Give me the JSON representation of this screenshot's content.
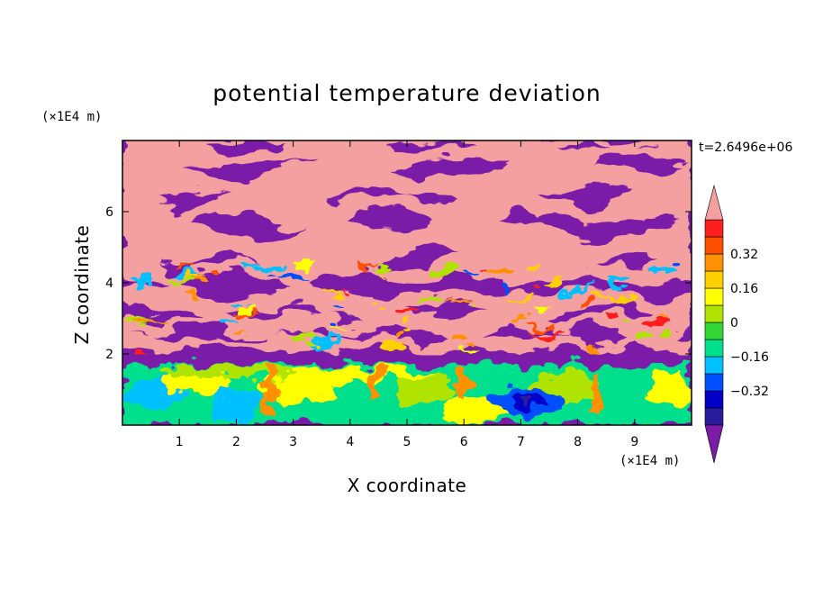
{
  "chart_data": {
    "type": "heatmap",
    "title": "potential temperature deviation",
    "xlabel": "X coordinate",
    "ylabel": "Z coordinate",
    "x_unit": "(×1E4 m)",
    "y_unit": "(×1E4 m)",
    "time_label": "t=2.6496e+06",
    "xlim": [
      0,
      10
    ],
    "ylim": [
      0,
      8
    ],
    "x_ticks": [
      1,
      2,
      3,
      4,
      5,
      6,
      7,
      8,
      9
    ],
    "x_tick_labels": [
      "1",
      "2",
      "3",
      "4",
      "5",
      "6",
      "7",
      "8",
      "9"
    ],
    "y_ticks": [
      2,
      4,
      6
    ],
    "y_tick_labels": [
      "2",
      "4",
      "6"
    ],
    "colorbar": {
      "levels": [
        -0.48,
        -0.4,
        -0.32,
        -0.24,
        -0.16,
        -0.08,
        0,
        0.08,
        0.16,
        0.24,
        0.32,
        0.4,
        0.48
      ],
      "labeled_values": [
        "0.32",
        "0.16",
        "0",
        "−0.16",
        "−0.32"
      ],
      "labeled_levels": [
        0.32,
        0.16,
        0,
        -0.16,
        -0.32
      ],
      "colors": [
        "#7b1ca8",
        "#2a1a9c",
        "#0000c8",
        "#0050ff",
        "#00c0ff",
        "#00e08c",
        "#33d633",
        "#b0e400",
        "#ffff00",
        "#ffd000",
        "#ff9000",
        "#ff5000",
        "#ff1e1e",
        "#f5a0a0"
      ],
      "extend": "both"
    },
    "bands": [
      {
        "name": "upper layers",
        "pattern": "alternating purple and pink layers",
        "z_range": [
          2,
          8
        ]
      },
      {
        "name": "lower boundary layer",
        "pattern": "cyan green yellow turbulent",
        "z_range": [
          0,
          1.7
        ]
      }
    ],
    "features": [
      {
        "x": 7.1,
        "z": 0.7,
        "value": -0.32
      }
    ]
  }
}
